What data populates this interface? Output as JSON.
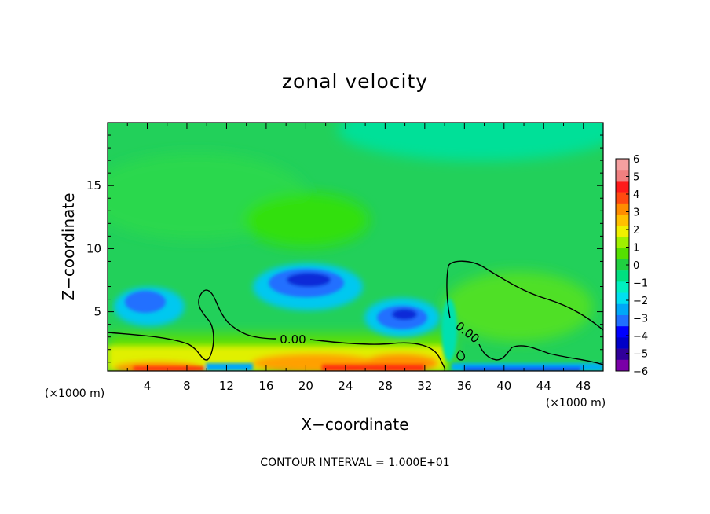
{
  "chart_data": {
    "type": "heatmap",
    "title": "zonal velocity",
    "xlabel": "X−coordinate",
    "ylabel": "Z−coordinate",
    "x_unit_left": "(×1000 m)",
    "x_unit_right": "(×1000 m)",
    "xlim": [
      0,
      50
    ],
    "ylim": [
      0.3,
      20
    ],
    "x_ticks": [
      {
        "v": 4,
        "label": "4"
      },
      {
        "v": 8,
        "label": "8"
      },
      {
        "v": 12,
        "label": "12"
      },
      {
        "v": 16,
        "label": "16"
      },
      {
        "v": 20,
        "label": "20"
      },
      {
        "v": 24,
        "label": "24"
      },
      {
        "v": 28,
        "label": "28"
      },
      {
        "v": 32,
        "label": "32"
      },
      {
        "v": 36,
        "label": "36"
      },
      {
        "v": 40,
        "label": "40"
      },
      {
        "v": 44,
        "label": "44"
      },
      {
        "v": 48,
        "label": "48"
      }
    ],
    "y_ticks": [
      {
        "v": 5,
        "label": "5"
      },
      {
        "v": 10,
        "label": "10"
      },
      {
        "v": 15,
        "label": "15"
      }
    ],
    "colorbar": {
      "levels": [
        "6",
        "5",
        "4",
        "3",
        "2",
        "1",
        "0",
        "−1",
        "−2",
        "−3",
        "−4",
        "−5",
        "−6"
      ],
      "colors": [
        "#f5a0a0",
        "#f08080",
        "#ff1a1a",
        "#ff4a10",
        "#ff8c00",
        "#ffc000",
        "#f0f000",
        "#a0f000",
        "#55e000",
        "#20d040",
        "#00e080",
        "#00f0c0",
        "#00e0f0",
        "#00a8f8",
        "#2070ff",
        "#0000ff",
        "#0000c8",
        "#30009a",
        "#7a00a8"
      ]
    },
    "contour_label_1": "0.00",
    "contour_label_2": "0.00",
    "features": [
      {
        "x": 5.0,
        "z": 5.5,
        "value": -3
      },
      {
        "x": 21.0,
        "z": 7.1,
        "value": -4
      },
      {
        "x": 29.5,
        "z": 4.6,
        "value": -4
      },
      {
        "x": 22.5,
        "z": 12.3,
        "value": 1
      },
      {
        "x": 21.0,
        "z": 1.0,
        "value": 4
      },
      {
        "x": 5.5,
        "z": 0.5,
        "value": 4
      },
      {
        "x": 38.0,
        "z": 19.5,
        "value": -2
      },
      {
        "x": 14.5,
        "z": 0.5,
        "value": -3
      },
      {
        "x": 45.0,
        "z": 0.5,
        "value": -4
      }
    ],
    "footer": "CONTOUR INTERVAL = 1.000E+01"
  }
}
